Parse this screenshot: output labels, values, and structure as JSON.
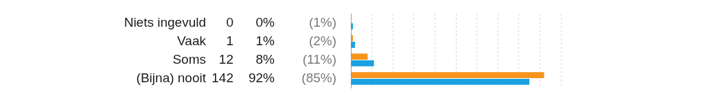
{
  "chart_data": {
    "type": "bar",
    "orientation": "horizontal",
    "categories": [
      "Niets ingevuld",
      "Vaak",
      "Soms",
      "(Bijna) nooit"
    ],
    "counts": [
      0,
      1,
      12,
      142
    ],
    "series": [
      {
        "color": "#f7941d",
        "values": [
          0,
          1,
          8,
          92
        ],
        "value_labels": [
          "0%",
          "1%",
          "8%",
          "92%"
        ]
      },
      {
        "color": "#1ba1e2",
        "values": [
          1,
          2,
          11,
          85
        ],
        "value_labels": [
          "(1%)",
          "(2%)",
          "(11%)",
          "(85%)"
        ]
      }
    ],
    "xlim": [
      0,
      100
    ],
    "xticks": [
      0,
      10,
      20,
      30,
      40,
      50,
      60,
      70,
      80,
      90,
      100
    ],
    "grid": true,
    "tick_labels": false
  }
}
